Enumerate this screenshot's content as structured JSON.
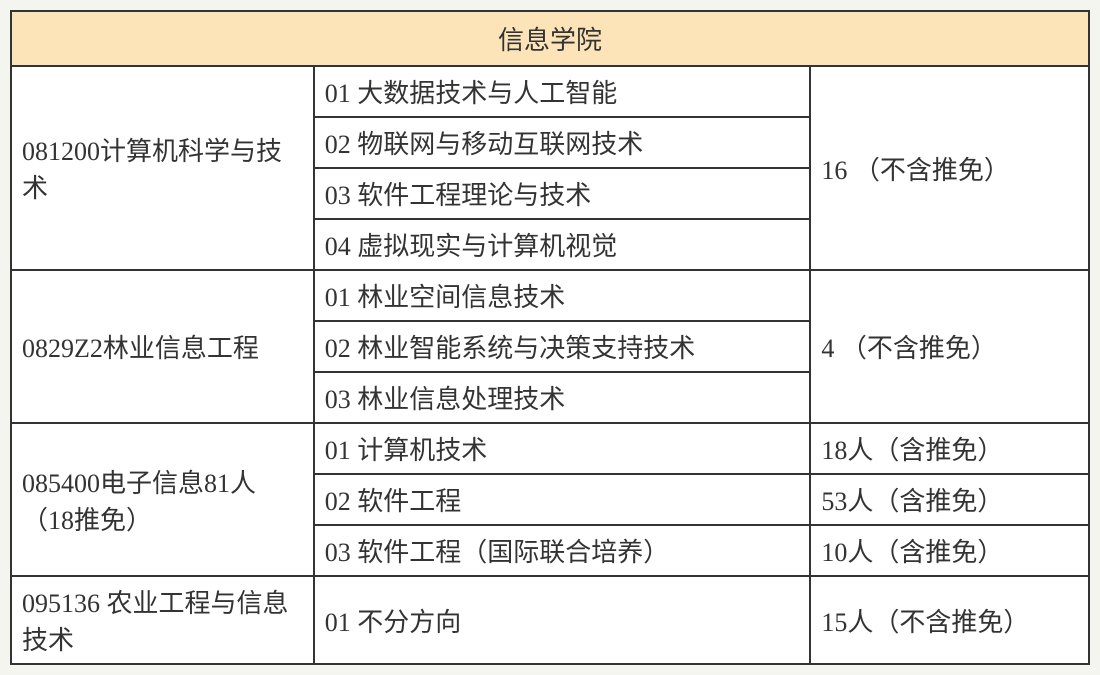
{
  "header": {
    "title": "信息学院",
    "background_color": "#fce4b8"
  },
  "programs": [
    {
      "code_name": "081200计算机科学与技术",
      "directions": [
        "01 大数据技术与人工智能",
        "02 物联网与移动互联网技术",
        "03 软件工程理论与技术",
        "04 虚拟现实与计算机视觉"
      ],
      "quotas": [
        "16 （不含推免）"
      ],
      "quota_rowspan": 4
    },
    {
      "code_name": "0829Z2林业信息工程",
      "directions": [
        "01 林业空间信息技术",
        "02 林业智能系统与决策支持技术",
        "03 林业信息处理技术"
      ],
      "quotas": [
        "4 （不含推免）"
      ],
      "quota_rowspan": 3
    },
    {
      "code_name": "085400电子信息81人（18推免）",
      "directions": [
        "01 计算机技术",
        "02 软件工程",
        "03 软件工程（国际联合培养）"
      ],
      "quotas": [
        "18人（含推免）",
        "53人（含推免）",
        "10人（含推免）"
      ],
      "quota_rowspan": 1
    },
    {
      "code_name": "095136 农业工程与信息技术",
      "directions": [
        "01 不分方向"
      ],
      "quotas": [
        "15人（不含推免）"
      ],
      "quota_rowspan": 1
    }
  ],
  "styling": {
    "border_color": "#333333",
    "border_width": "2px",
    "font_size": 26,
    "font_family": "SimSun",
    "text_color": "#333333",
    "background_color": "#ffffff",
    "col1_width": 250,
    "col2_width": 410,
    "col3_width": 230
  }
}
